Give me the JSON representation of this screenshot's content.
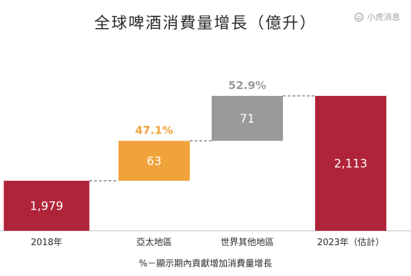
{
  "title": "全球啤酒消費量增長（億升）",
  "watermark": {
    "icon": "tiger-logo-icon",
    "text": "小虎消息"
  },
  "footnote": "%－顯示期內貢獻增加消費量增長",
  "colors": {
    "total": "#B0243A",
    "asia": "#F0A33A",
    "rest": "#9A9A9A",
    "pct_asia": "#F0A33A",
    "pct_rest": "#9A9A9A"
  },
  "chart_data": {
    "type": "bar",
    "subtype": "waterfall",
    "categories": [
      "2018年",
      "亞太地區",
      "世界其他地區",
      "2023年（估計）"
    ],
    "values": [
      1979,
      63,
      71,
      2113
    ],
    "value_labels": [
      "1,979",
      "63",
      "71",
      "2,113"
    ],
    "bar_kind": [
      "total",
      "increase",
      "increase",
      "total"
    ],
    "percent_labels": [
      "",
      "47.1%",
      "52.9%",
      ""
    ],
    "ylim": [
      1900,
      2140
    ],
    "grid": false,
    "legend": "none"
  }
}
